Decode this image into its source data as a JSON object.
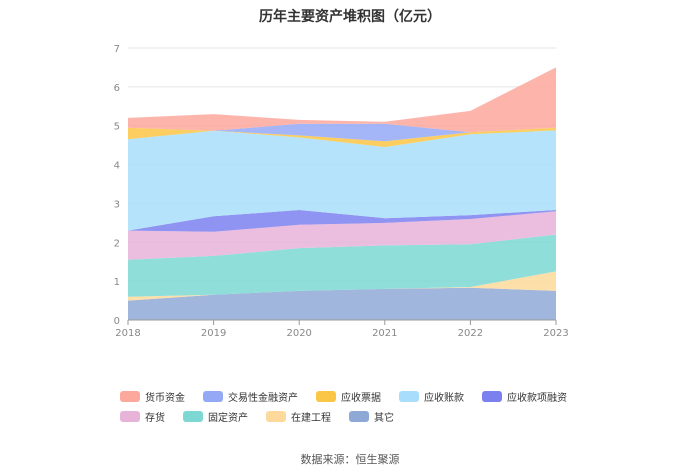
{
  "title": "历年主要资产堆积图（亿元）",
  "source": "数据来源：恒生聚源",
  "chart_data": {
    "type": "area",
    "stacked": true,
    "x": [
      "2018",
      "2019",
      "2020",
      "2021",
      "2022",
      "2023"
    ],
    "ylim": [
      0,
      7
    ],
    "yticks": [
      "0",
      "1",
      "2",
      "3",
      "4",
      "5",
      "6",
      "7"
    ],
    "grid": true,
    "legend_position": "bottom",
    "series": [
      {
        "name": "其它",
        "color": "#8fa9d6",
        "values": [
          0.5,
          0.65,
          0.75,
          0.8,
          0.83,
          0.75
        ]
      },
      {
        "name": "在建工程",
        "color": "#fdd99b",
        "values": [
          0.1,
          0.0,
          0.0,
          0.0,
          0.02,
          0.5
        ]
      },
      {
        "name": "固定资产",
        "color": "#7dd8d3",
        "values": [
          0.95,
          1.0,
          1.1,
          1.12,
          1.1,
          0.95
        ]
      },
      {
        "name": "存货",
        "color": "#e8b3d9",
        "values": [
          0.75,
          0.62,
          0.6,
          0.58,
          0.65,
          0.6
        ]
      },
      {
        "name": "应收款项融资",
        "color": "#7b80ee",
        "values": [
          0.0,
          0.4,
          0.38,
          0.12,
          0.1,
          0.03
        ]
      },
      {
        "name": "应收账款",
        "color": "#a8defb",
        "values": [
          2.35,
          2.2,
          1.87,
          1.83,
          2.08,
          2.05
        ]
      },
      {
        "name": "应收票据",
        "color": "#fbc645",
        "values": [
          0.3,
          0.0,
          0.05,
          0.15,
          0.05,
          0.07
        ]
      },
      {
        "name": "交易性金融资产",
        "color": "#94a9f6",
        "values": [
          0.0,
          0.0,
          0.3,
          0.45,
          0.0,
          0.0
        ]
      },
      {
        "name": "货币资金",
        "color": "#fda89c",
        "values": [
          0.25,
          0.43,
          0.1,
          0.05,
          0.55,
          1.55
        ]
      }
    ],
    "legend_order": [
      "货币资金",
      "交易性金融资产",
      "应收票据",
      "应收账款",
      "应收款项融资",
      "存货",
      "固定资产",
      "在建工程",
      "其它"
    ]
  }
}
